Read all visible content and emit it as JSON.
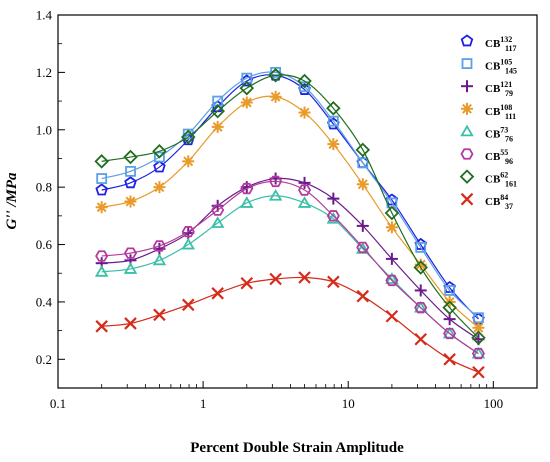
{
  "chart_data": {
    "type": "line",
    "title": "",
    "xlabel": "Percent Double Strain Amplitude",
    "ylabel": "G'' /MPa",
    "xscale": "log",
    "xlim": [
      0.1,
      200
    ],
    "ylim": [
      0.1,
      1.4
    ],
    "x_ticks": [
      {
        "value": 0.1,
        "label": "0.1"
      },
      {
        "value": 1,
        "label": "1"
      },
      {
        "value": 10,
        "label": "10"
      },
      {
        "value": 100,
        "label": "100"
      }
    ],
    "y_ticks": [
      {
        "value": 0.2,
        "label": "0.2"
      },
      {
        "value": 0.4,
        "label": "0.4"
      },
      {
        "value": 0.6,
        "label": "0.6"
      },
      {
        "value": 0.8,
        "label": "0.8"
      },
      {
        "value": 1.0,
        "label": "1.0"
      },
      {
        "value": 1.2,
        "label": "1.2"
      },
      {
        "value": 1.4,
        "label": "1.4"
      }
    ],
    "grid": false,
    "legend_position": "top-right",
    "x": [
      0.2,
      0.316,
      0.5,
      0.79,
      1.26,
      2.0,
      3.16,
      5.0,
      7.9,
      12.6,
      20,
      31.6,
      50,
      79
    ],
    "series": [
      {
        "name": "CB",
        "sup": "132",
        "sub": "117",
        "marker": "pentagon",
        "color": "#1f1fe6",
        "values": [
          0.79,
          0.815,
          0.87,
          0.965,
          1.08,
          1.17,
          1.19,
          1.14,
          1.02,
          0.885,
          0.755,
          0.6,
          0.45,
          0.34
        ]
      },
      {
        "name": "CB",
        "sup": "105",
        "sub": "145",
        "marker": "square",
        "color": "#5aa0e6",
        "values": [
          0.83,
          0.855,
          0.905,
          0.985,
          1.1,
          1.18,
          1.2,
          1.15,
          1.03,
          0.885,
          0.745,
          0.59,
          0.44,
          0.345
        ]
      },
      {
        "name": "CB",
        "sup": "121",
        "sub": "79",
        "marker": "plus",
        "color": "#6a1a8a",
        "values": [
          0.535,
          0.545,
          0.585,
          0.64,
          0.735,
          0.8,
          0.83,
          0.815,
          0.76,
          0.665,
          0.55,
          0.44,
          0.34,
          0.27
        ]
      },
      {
        "name": "CB",
        "sup": "108",
        "sub": "111",
        "marker": "asterisk",
        "color": "#e89b2a",
        "values": [
          0.73,
          0.75,
          0.8,
          0.89,
          1.01,
          1.095,
          1.115,
          1.06,
          0.95,
          0.81,
          0.66,
          0.53,
          0.4,
          0.31
        ]
      },
      {
        "name": "CB",
        "sup": "73",
        "sub": "76",
        "marker": "triangle",
        "color": "#3cbfa8",
        "values": [
          0.505,
          0.515,
          0.545,
          0.6,
          0.675,
          0.745,
          0.77,
          0.745,
          0.69,
          0.585,
          0.48,
          0.38,
          0.29,
          0.22
        ]
      },
      {
        "name": "CB",
        "sup": "55",
        "sub": "96",
        "marker": "hexagon",
        "color": "#b33a9e",
        "values": [
          0.56,
          0.57,
          0.595,
          0.645,
          0.72,
          0.795,
          0.82,
          0.79,
          0.7,
          0.59,
          0.475,
          0.38,
          0.29,
          0.22
        ]
      },
      {
        "name": "CB",
        "sup": "62",
        "sub": "161",
        "marker": "diamond",
        "color": "#1f6e1f",
        "values": [
          0.89,
          0.905,
          0.925,
          0.975,
          1.065,
          1.145,
          1.19,
          1.17,
          1.075,
          0.93,
          0.71,
          0.52,
          0.38,
          0.275
        ]
      },
      {
        "name": "CB",
        "sup": "84",
        "sub": "37",
        "marker": "x",
        "color": "#d62a1a",
        "values": [
          0.315,
          0.325,
          0.355,
          0.39,
          0.43,
          0.465,
          0.48,
          0.485,
          0.47,
          0.42,
          0.35,
          0.27,
          0.2,
          0.155
        ]
      }
    ]
  }
}
